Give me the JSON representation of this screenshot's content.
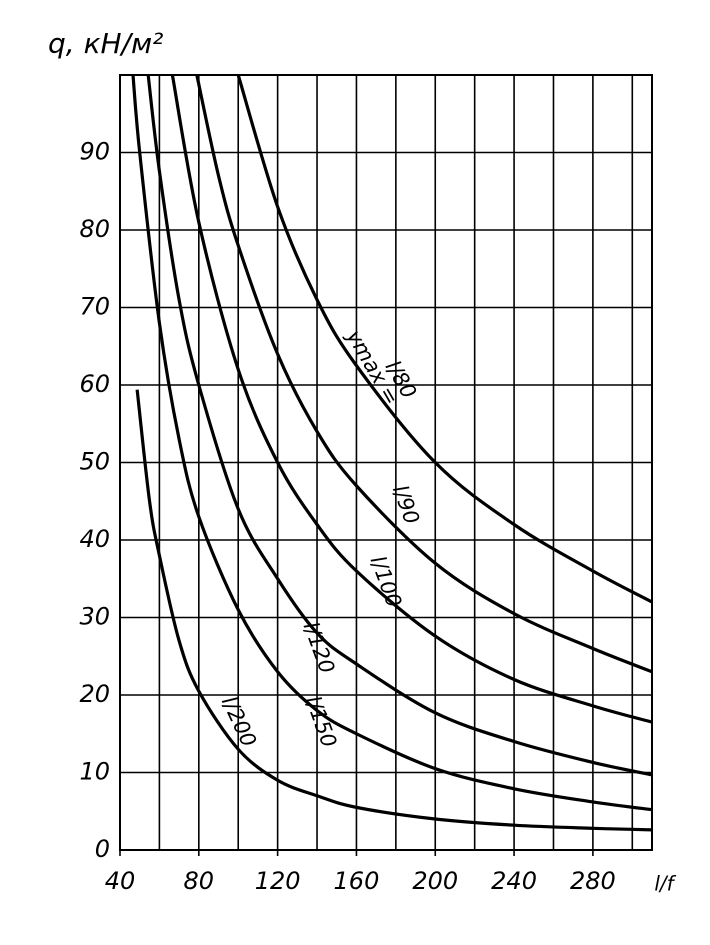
{
  "chart_data": {
    "type": "line",
    "y_label": "q, кН/м²",
    "x_label": "l/f",
    "annotation": "ymax =",
    "xlim": [
      40,
      310
    ],
    "xticks": [
      40,
      80,
      120,
      160,
      200,
      240,
      280
    ],
    "xgrid": [
      40,
      60,
      80,
      100,
      120,
      140,
      160,
      180,
      200,
      220,
      240,
      260,
      280,
      300
    ],
    "ylim": [
      0,
      100
    ],
    "yticks": [
      0,
      10,
      20,
      30,
      40,
      50,
      60,
      70,
      80,
      90
    ],
    "grid": true,
    "series": [
      {
        "name": "l/80",
        "color": "#000000",
        "x": [
          100,
          120,
          140,
          160,
          200,
          240,
          280,
          310
        ],
        "values": [
          100,
          83,
          71,
          62.5,
          50,
          42,
          36,
          32
        ]
      },
      {
        "name": "l/90",
        "color": "#000000",
        "x": [
          79,
          90,
          100,
          120,
          140,
          160,
          200,
          240,
          280,
          310
        ],
        "values": [
          100,
          87,
          78,
          64,
          54,
          47,
          37,
          30.5,
          26,
          23
        ]
      },
      {
        "name": "l/100",
        "color": "#000000",
        "x": [
          66.6,
          80,
          100,
          120,
          140,
          160,
          200,
          240,
          280,
          310
        ],
        "values": [
          100,
          81,
          62,
          50,
          42,
          36,
          27.6,
          22,
          18.6,
          16.5
        ]
      },
      {
        "name": "l/120",
        "color": "#000000",
        "x": [
          54.3,
          60,
          70,
          80,
          100,
          120,
          140,
          160,
          200,
          240,
          280,
          310
        ],
        "values": [
          100,
          87.6,
          71,
          60,
          44,
          35,
          28,
          24,
          17.7,
          14,
          11.3,
          9.7
        ]
      },
      {
        "name": "l/150",
        "color": "#000000",
        "x": [
          46.6,
          50,
          60,
          70,
          80,
          100,
          120,
          140,
          160,
          200,
          240,
          280,
          310
        ],
        "values": [
          100,
          90,
          68,
          53,
          43,
          31,
          23,
          18,
          15,
          10.5,
          7.9,
          6.2,
          5.2
        ]
      },
      {
        "name": "l/200",
        "color": "#000000",
        "x": [
          48.7,
          55,
          60,
          70,
          80,
          100,
          120,
          140,
          160,
          200,
          240,
          280,
          310
        ],
        "values": [
          59.4,
          45,
          38,
          27,
          20.5,
          13,
          9,
          7,
          5.5,
          4,
          3.2,
          2.8,
          2.6
        ]
      }
    ]
  }
}
